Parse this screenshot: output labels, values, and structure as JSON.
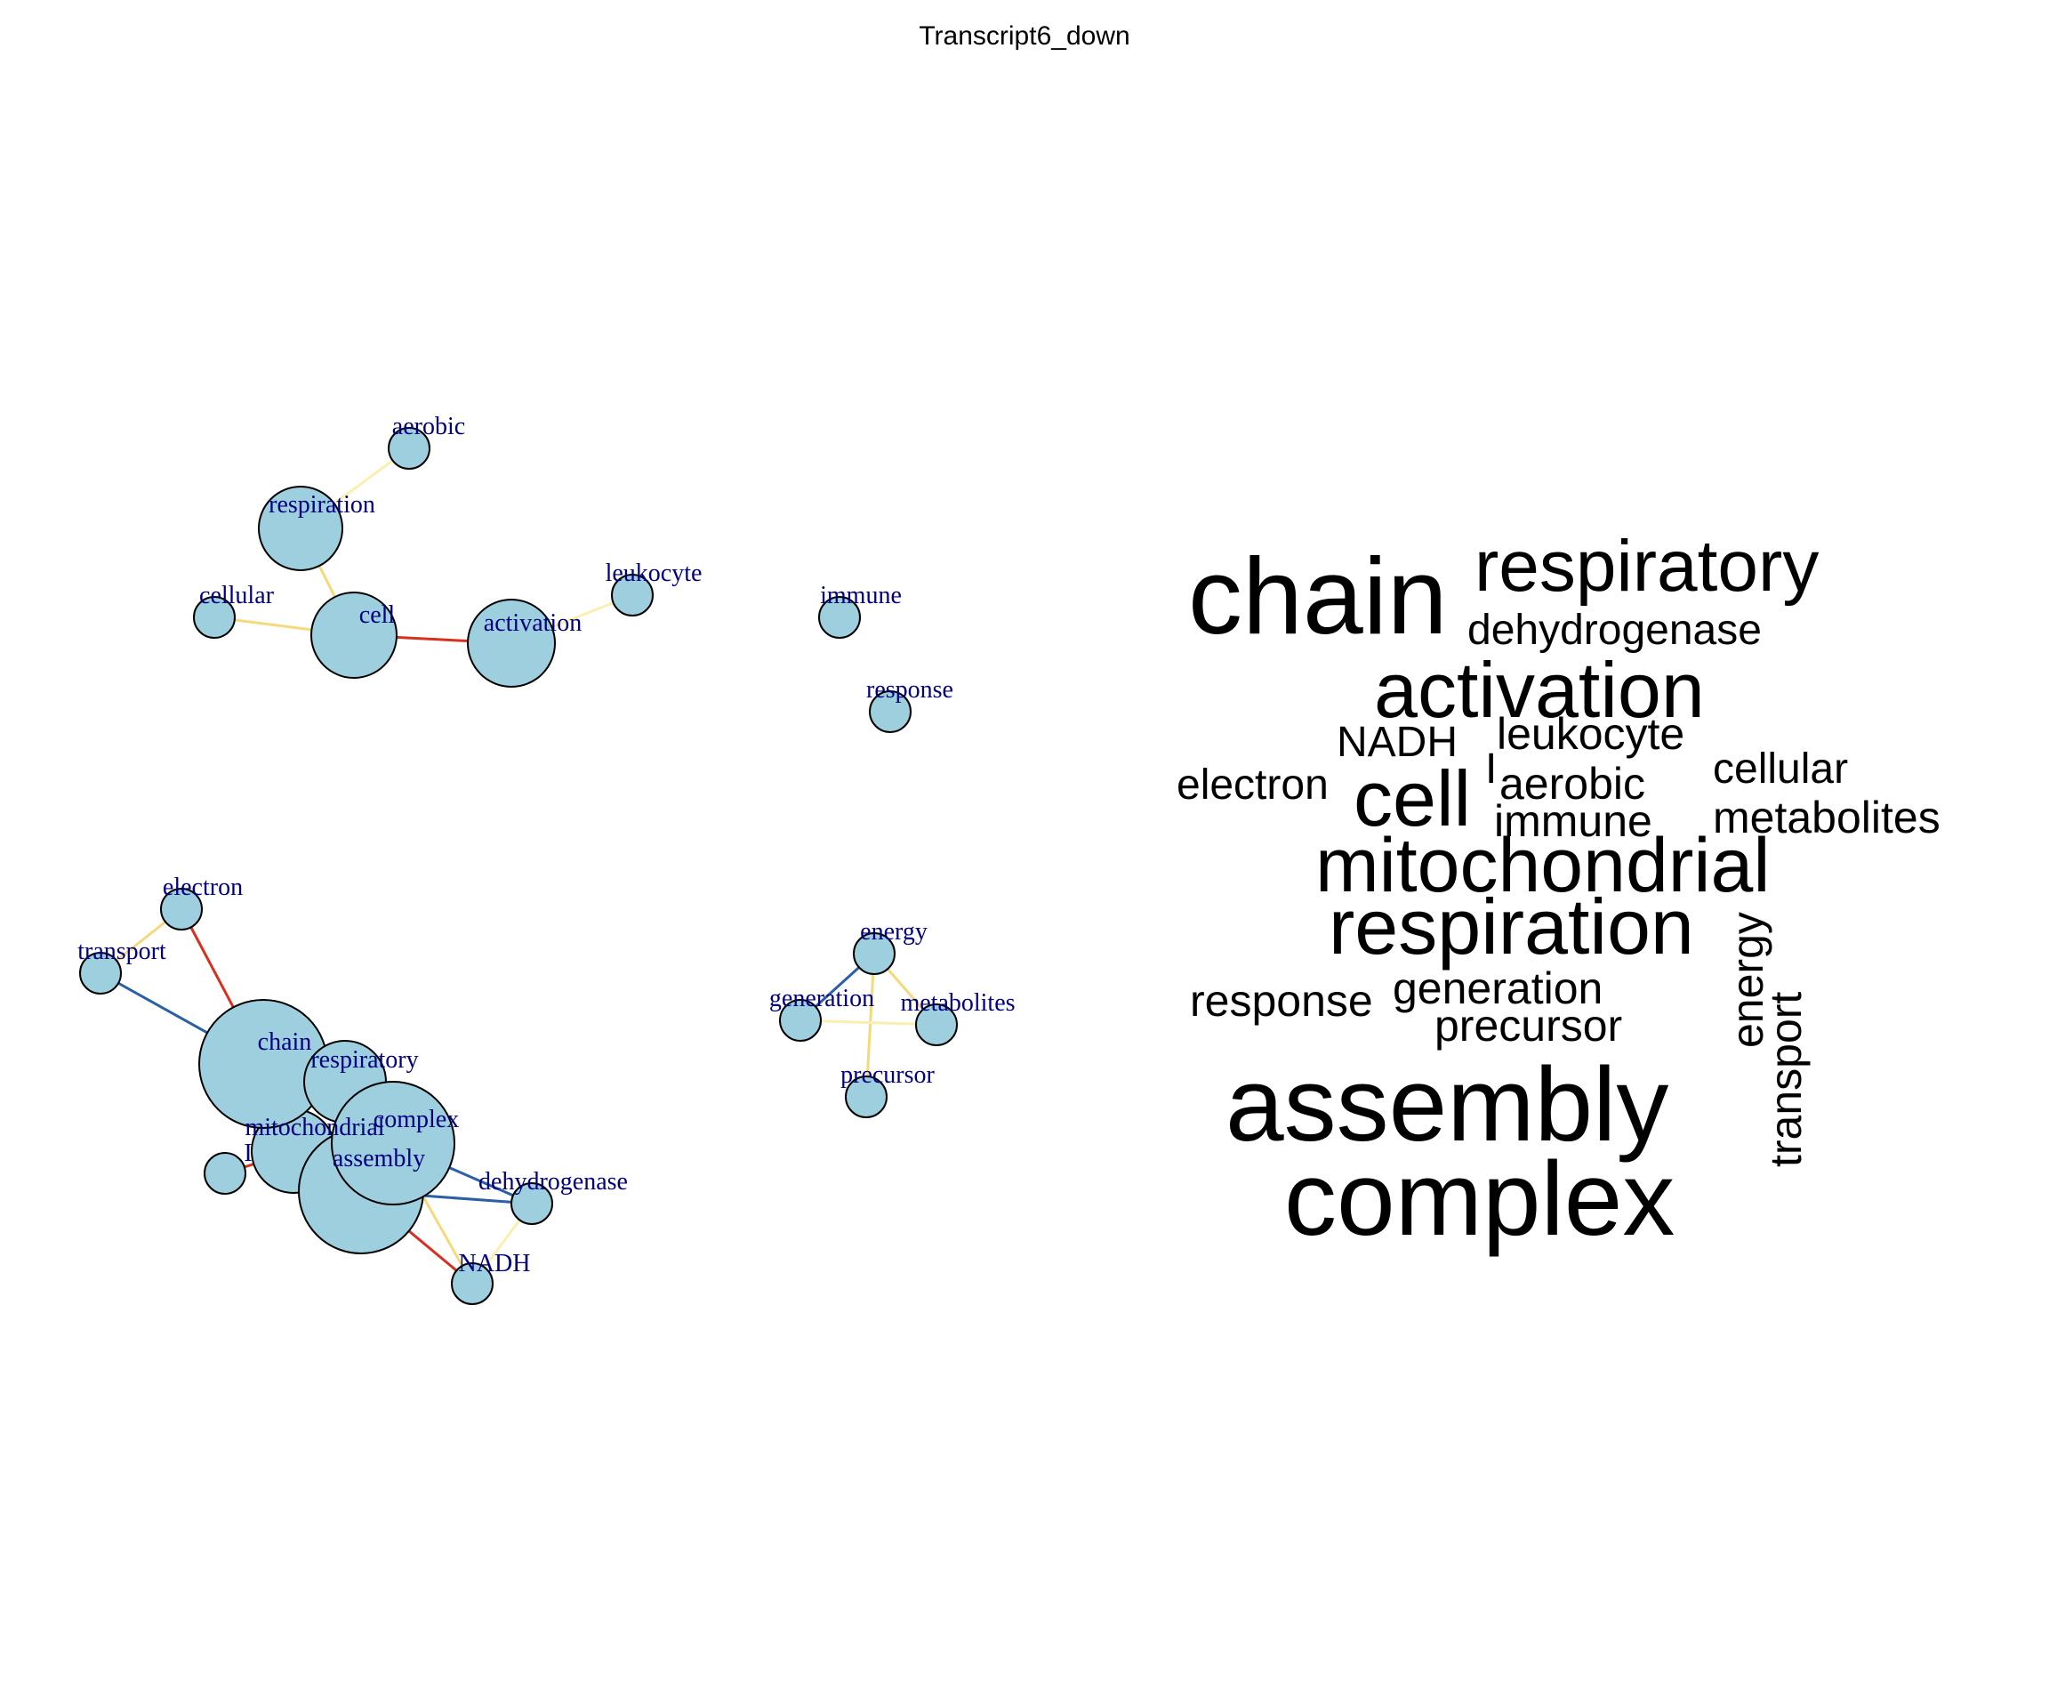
{
  "title": "Transcript6_down",
  "colors": {
    "node_fill": "#9ECFDF",
    "node_stroke": "#000000",
    "label": "#000080",
    "edge_red": "#D7301F",
    "edge_blue": "#2B5FA6",
    "edge_yellow": "#F5D97A",
    "edge_pale": "#FBEFB0"
  },
  "network": {
    "nodes": [
      {
        "id": "aerobic",
        "label": "aerobic",
        "size": "small"
      },
      {
        "id": "respiration",
        "label": "respiration",
        "size": "medium"
      },
      {
        "id": "cellular",
        "label": "cellular",
        "size": "small"
      },
      {
        "id": "cell",
        "label": "cell",
        "size": "medium"
      },
      {
        "id": "activation",
        "label": "activation",
        "size": "medium"
      },
      {
        "id": "leukocyte",
        "label": "leukocyte",
        "size": "small"
      },
      {
        "id": "immune",
        "label": "immune",
        "size": "small"
      },
      {
        "id": "response",
        "label": "response",
        "size": "small"
      },
      {
        "id": "electron",
        "label": "electron",
        "size": "small"
      },
      {
        "id": "transport",
        "label": "transport",
        "size": "small"
      },
      {
        "id": "chain",
        "label": "chain",
        "size": "xlarge"
      },
      {
        "id": "respiratory",
        "label": "respiratory",
        "size": "medium"
      },
      {
        "id": "complex",
        "label": "complex",
        "size": "large"
      },
      {
        "id": "mitochondrial",
        "label": "mitochondrial",
        "size": "medium"
      },
      {
        "id": "I",
        "label": "I",
        "size": "small"
      },
      {
        "id": "assembly",
        "label": "assembly",
        "size": "large"
      },
      {
        "id": "dehydrogenase",
        "label": "dehydrogenase",
        "size": "small"
      },
      {
        "id": "NADH",
        "label": "NADH",
        "size": "small"
      },
      {
        "id": "energy",
        "label": "energy",
        "size": "small"
      },
      {
        "id": "generation",
        "label": "generation",
        "size": "small"
      },
      {
        "id": "metabolites",
        "label": "metabolites",
        "size": "small"
      },
      {
        "id": "precursor",
        "label": "precursor",
        "size": "small"
      }
    ],
    "edges": [
      {
        "source": "aerobic",
        "target": "respiration",
        "color": "pale"
      },
      {
        "source": "respiration",
        "target": "cell",
        "color": "yellow"
      },
      {
        "source": "cellular",
        "target": "cell",
        "color": "yellow"
      },
      {
        "source": "cell",
        "target": "activation",
        "color": "red"
      },
      {
        "source": "activation",
        "target": "leukocyte",
        "color": "pale"
      },
      {
        "source": "electron",
        "target": "transport",
        "color": "yellow"
      },
      {
        "source": "electron",
        "target": "chain",
        "color": "red"
      },
      {
        "source": "transport",
        "target": "chain",
        "color": "blue"
      },
      {
        "source": "chain",
        "target": "respiratory",
        "color": "blue"
      },
      {
        "source": "complex",
        "target": "dehydrogenase",
        "color": "blue"
      },
      {
        "source": "assembly",
        "target": "dehydrogenase",
        "color": "blue"
      },
      {
        "source": "assembly",
        "target": "NADH",
        "color": "red"
      },
      {
        "source": "complex",
        "target": "NADH",
        "color": "yellow"
      },
      {
        "source": "dehydrogenase",
        "target": "NADH",
        "color": "pale"
      },
      {
        "source": "I",
        "target": "mitochondrial",
        "color": "red"
      },
      {
        "source": "energy",
        "target": "generation",
        "color": "blue"
      },
      {
        "source": "energy",
        "target": "metabolites",
        "color": "yellow"
      },
      {
        "source": "energy",
        "target": "precursor",
        "color": "yellow"
      },
      {
        "source": "generation",
        "target": "metabolites",
        "color": "pale"
      }
    ]
  },
  "wordcloud": [
    {
      "word": "chain",
      "weight": 10,
      "rotate": false
    },
    {
      "word": "respiratory",
      "weight": 7,
      "rotate": false
    },
    {
      "word": "dehydrogenase",
      "weight": 4,
      "rotate": false
    },
    {
      "word": "activation",
      "weight": 7,
      "rotate": false
    },
    {
      "word": "NADH",
      "weight": 4,
      "rotate": false
    },
    {
      "word": "leukocyte",
      "weight": 4,
      "rotate": false
    },
    {
      "word": "electron",
      "weight": 4,
      "rotate": false
    },
    {
      "word": "cell",
      "weight": 7,
      "rotate": false
    },
    {
      "word": "I",
      "weight": 4,
      "rotate": false
    },
    {
      "word": "aerobic",
      "weight": 4,
      "rotate": false
    },
    {
      "word": "cellular",
      "weight": 4,
      "rotate": false
    },
    {
      "word": "immune",
      "weight": 4,
      "rotate": false
    },
    {
      "word": "metabolites",
      "weight": 4,
      "rotate": false
    },
    {
      "word": "mitochondrial",
      "weight": 7,
      "rotate": false
    },
    {
      "word": "respiration",
      "weight": 7,
      "rotate": false
    },
    {
      "word": "energy",
      "weight": 4,
      "rotate": true
    },
    {
      "word": "response",
      "weight": 4,
      "rotate": false
    },
    {
      "word": "generation",
      "weight": 4,
      "rotate": false
    },
    {
      "word": "precursor",
      "weight": 4,
      "rotate": false
    },
    {
      "word": "transport",
      "weight": 4,
      "rotate": true
    },
    {
      "word": "assembly",
      "weight": 10,
      "rotate": false
    },
    {
      "word": "complex",
      "weight": 10,
      "rotate": false
    }
  ]
}
